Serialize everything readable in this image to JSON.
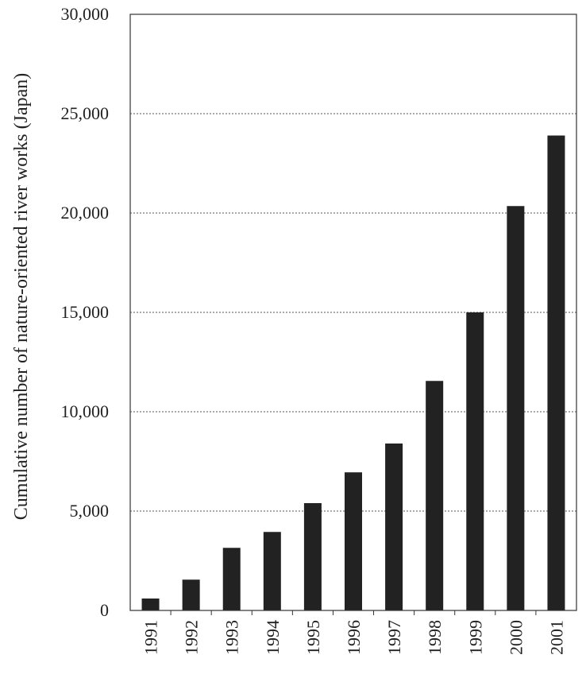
{
  "chart_data": {
    "type": "bar",
    "categories": [
      "1991",
      "1992",
      "1993",
      "1994",
      "1995",
      "1996",
      "1997",
      "1998",
      "1999",
      "2000",
      "2001"
    ],
    "values": [
      600,
      1550,
      3150,
      3950,
      5400,
      6950,
      8400,
      11550,
      15000,
      20350,
      23900
    ],
    "ylabel": "Cumulative number of nature-oriented river works (Japan)",
    "xlabel": "",
    "ylim": [
      0,
      30000
    ],
    "y_ticks": [
      0,
      5000,
      10000,
      15000,
      20000,
      25000,
      30000
    ],
    "y_tick_labels": [
      "0",
      "5,000",
      "10,000",
      "15,000",
      "20,000",
      "25,000",
      "30,000"
    ],
    "grid": "horizontal dotted",
    "bar_color": "#222222"
  }
}
